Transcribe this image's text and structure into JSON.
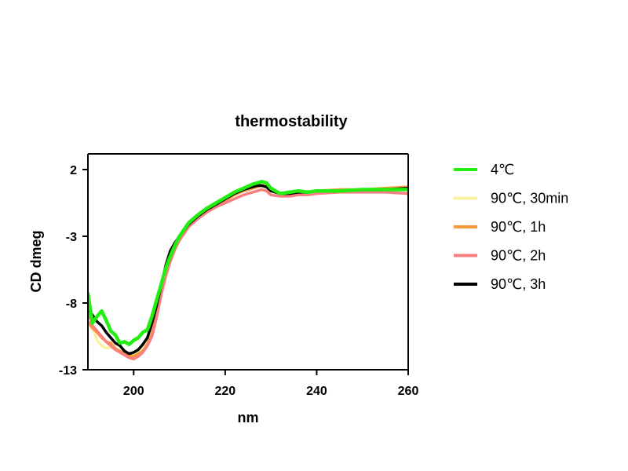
{
  "chart_data": {
    "type": "line",
    "title": "thermostability",
    "xlabel": "nm",
    "ylabel": "CD dmeg",
    "xlim": [
      190,
      260
    ],
    "ylim": [
      -13,
      2.5
    ],
    "xticks": [
      200,
      220,
      240,
      260
    ],
    "yticks": [
      2,
      -3,
      -8,
      -13
    ],
    "grid": false,
    "legend_position": "right",
    "series": [
      {
        "name": "4℃",
        "color": "#22ee11",
        "x": [
          190,
          191,
          192,
          193,
          194,
          195,
          196,
          197,
          198,
          199,
          200,
          201,
          202,
          203,
          204,
          205,
          206,
          207,
          208,
          209,
          210,
          212,
          214,
          216,
          218,
          220,
          222,
          224,
          226,
          227,
          228,
          229,
          230,
          232,
          234,
          236,
          238,
          240,
          245,
          250,
          255,
          260
        ],
        "y": [
          -7.3,
          -9.5,
          -9.0,
          -8.6,
          -9.3,
          -10.1,
          -10.4,
          -11.0,
          -10.9,
          -11.1,
          -10.8,
          -10.6,
          -10.2,
          -10.0,
          -9.0,
          -7.8,
          -6.6,
          -5.4,
          -4.5,
          -3.7,
          -3.0,
          -2.0,
          -1.4,
          -0.9,
          -0.5,
          -0.1,
          0.3,
          0.6,
          0.9,
          1.0,
          1.1,
          1.0,
          0.6,
          0.2,
          0.3,
          0.4,
          0.3,
          0.4,
          0.4,
          0.5,
          0.5,
          0.5
        ]
      },
      {
        "name": "90℃, 30min",
        "color": "#fbf2a0",
        "x": [
          190,
          191,
          192,
          193,
          194,
          195,
          196,
          197,
          198,
          199,
          200,
          201,
          202,
          203,
          204,
          205,
          206,
          207,
          208,
          209,
          210,
          212,
          214,
          216,
          218,
          220,
          222,
          224,
          226,
          227,
          228,
          229,
          230,
          232,
          234,
          236,
          238,
          240,
          245,
          250,
          255,
          260
        ],
        "y": [
          -7.8,
          -9.8,
          -10.8,
          -11.2,
          -11.4,
          -11.3,
          -11.5,
          -11.6,
          -11.7,
          -11.8,
          -11.9,
          -11.7,
          -11.3,
          -10.8,
          -10.0,
          -8.6,
          -7.1,
          -5.8,
          -4.6,
          -3.8,
          -3.1,
          -2.1,
          -1.5,
          -1.0,
          -0.6,
          -0.2,
          0.1,
          0.4,
          0.7,
          0.8,
          0.9,
          0.8,
          0.5,
          0.2,
          0.2,
          0.3,
          0.3,
          0.4,
          0.4,
          0.5,
          0.5,
          0.6
        ]
      },
      {
        "name": "90℃, 1h",
        "color": "#f7983b",
        "x": [
          190,
          191,
          192,
          193,
          194,
          195,
          196,
          197,
          198,
          199,
          200,
          201,
          202,
          203,
          204,
          205,
          206,
          207,
          208,
          209,
          210,
          212,
          214,
          216,
          218,
          220,
          222,
          224,
          226,
          227,
          228,
          229,
          230,
          232,
          234,
          236,
          238,
          240,
          245,
          250,
          255,
          260
        ],
        "y": [
          -9.4,
          -9.9,
          -10.2,
          -10.6,
          -10.9,
          -11.0,
          -11.4,
          -11.6,
          -11.8,
          -11.9,
          -12.0,
          -11.8,
          -11.6,
          -11.1,
          -10.3,
          -8.8,
          -7.2,
          -5.9,
          -4.8,
          -3.9,
          -3.2,
          -2.2,
          -1.6,
          -1.1,
          -0.7,
          -0.3,
          0.1,
          0.4,
          0.6,
          0.7,
          0.8,
          0.7,
          0.4,
          0.2,
          0.2,
          0.3,
          0.3,
          0.4,
          0.5,
          0.5,
          0.6,
          0.7
        ]
      },
      {
        "name": "90℃, 2h",
        "color": "#f77f7f",
        "x": [
          190,
          191,
          192,
          193,
          194,
          195,
          196,
          197,
          198,
          199,
          200,
          201,
          202,
          203,
          204,
          205,
          206,
          207,
          208,
          209,
          210,
          212,
          214,
          216,
          218,
          220,
          222,
          224,
          226,
          227,
          228,
          229,
          230,
          232,
          234,
          236,
          238,
          240,
          245,
          250,
          255,
          260
        ],
        "y": [
          -8.6,
          -9.7,
          -10.1,
          -10.5,
          -10.9,
          -11.2,
          -11.5,
          -11.7,
          -11.9,
          -12.1,
          -12.2,
          -12.0,
          -11.7,
          -11.2,
          -10.5,
          -9.1,
          -7.4,
          -6.0,
          -4.9,
          -4.0,
          -3.3,
          -2.3,
          -1.7,
          -1.2,
          -0.8,
          -0.5,
          -0.2,
          0.1,
          0.3,
          0.4,
          0.5,
          0.4,
          0.1,
          0.0,
          0.0,
          0.1,
          0.1,
          0.2,
          0.3,
          0.3,
          0.3,
          0.2
        ]
      },
      {
        "name": "90℃, 3h",
        "color": "#000000",
        "x": [
          190,
          191,
          192,
          193,
          194,
          195,
          196,
          197,
          198,
          199,
          200,
          201,
          202,
          203,
          204,
          205,
          206,
          207,
          208,
          209,
          210,
          212,
          214,
          216,
          218,
          220,
          222,
          224,
          226,
          227,
          228,
          229,
          230,
          232,
          234,
          236,
          238,
          240,
          245,
          250,
          255,
          260
        ],
        "y": [
          -8.4,
          -8.9,
          -9.4,
          -9.7,
          -10.2,
          -10.6,
          -11.0,
          -11.2,
          -11.6,
          -11.8,
          -11.7,
          -11.5,
          -11.1,
          -10.6,
          -9.5,
          -8.2,
          -6.7,
          -5.2,
          -4.1,
          -3.5,
          -3.0,
          -2.1,
          -1.5,
          -1.0,
          -0.6,
          -0.2,
          0.2,
          0.5,
          0.7,
          0.8,
          0.8,
          0.7,
          0.4,
          0.2,
          0.2,
          0.3,
          0.3,
          0.4,
          0.4,
          0.5,
          0.5,
          0.6
        ]
      }
    ]
  }
}
